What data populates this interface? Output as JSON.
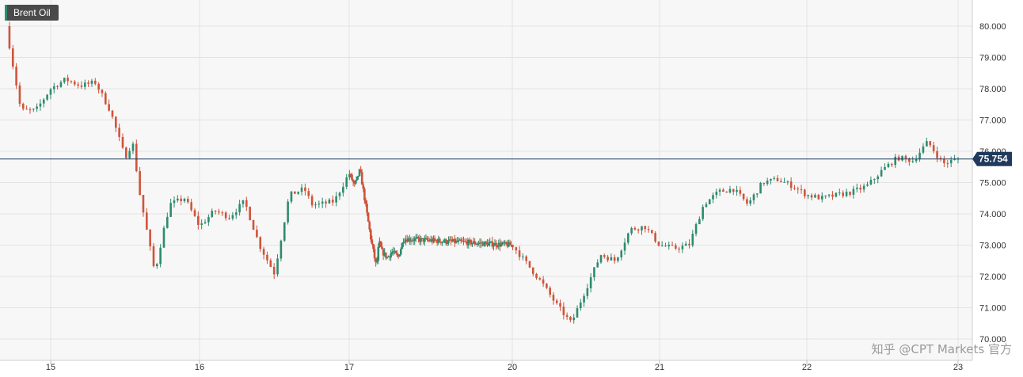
{
  "instrument": {
    "name": "Brent Oil"
  },
  "price_tag": {
    "value": "75.754",
    "color": "#1f3a5c"
  },
  "watermark": "知乎 @CPT Markets 官方",
  "colors": {
    "up": "#2e8b6e",
    "down": "#d0533a",
    "grid": "#e3e3e3",
    "plot_bg": "#f7f7f7"
  },
  "chart_data": {
    "type": "candlestick",
    "title": "Brent Oil",
    "x_ticks": [
      "15",
      "16",
      "17",
      "20",
      "21",
      "22",
      "23"
    ],
    "y_ticks": [
      "70.000",
      "71.000",
      "72.000",
      "73.000",
      "74.000",
      "75.000",
      "76.000",
      "77.000",
      "78.000",
      "79.000",
      "80.000"
    ],
    "ylim": [
      69.9,
      80.6
    ],
    "last_price": 75.754,
    "grid": true,
    "series": [
      {
        "x": [
          14.7,
          14.8,
          14.9,
          15.0,
          15.1,
          15.2,
          15.3,
          15.4,
          15.5,
          15.55,
          15.6,
          15.7,
          15.75,
          15.8,
          15.9,
          16.0,
          16.1,
          16.2,
          16.3,
          16.4,
          16.5,
          16.6,
          16.7,
          16.75,
          16.8,
          16.9,
          17.0,
          17.1,
          17.2,
          17.3,
          17.4,
          17.5,
          17.55,
          17.6,
          17.7,
          17.8,
          17.9,
          18.0,
          20.0,
          20.1,
          20.2,
          20.3,
          20.4,
          20.5,
          20.6,
          20.7,
          20.8,
          20.9,
          21.0,
          21.1,
          21.2,
          21.3,
          21.4,
          21.5,
          21.6,
          21.7,
          21.8,
          21.9,
          22.0,
          22.1,
          22.2,
          22.3,
          22.4,
          22.5,
          22.6,
          22.7,
          22.8,
          22.9,
          23.0
        ],
        "close": [
          80.0,
          77.3,
          77.3,
          78.0,
          78.3,
          78.1,
          78.2,
          77.3,
          75.8,
          76.3,
          74.6,
          72.1,
          73.3,
          74.3,
          74.5,
          73.6,
          74.1,
          73.9,
          74.4,
          73.0,
          72.1,
          74.6,
          74.8,
          74.3,
          74.3,
          74.4,
          75.3,
          74.9,
          75.4,
          74.3,
          73.2,
          72.3,
          73.1,
          72.8,
          72.6,
          72.8,
          72.6,
          73.2,
          73.0,
          72.4,
          71.8,
          71.1,
          70.5,
          71.6,
          72.7,
          72.5,
          73.5,
          73.6,
          73.0,
          72.9,
          73.0,
          74.3,
          74.7,
          74.8,
          74.3,
          75.0,
          75.1,
          74.9,
          74.6,
          74.5,
          74.6,
          74.7,
          74.9,
          75.4,
          75.8,
          75.7,
          76.3,
          75.6,
          75.754
        ]
      }
    ]
  }
}
